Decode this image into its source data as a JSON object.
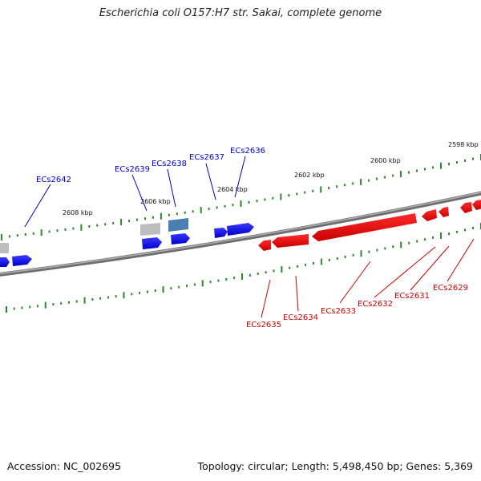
{
  "title": "Escherichia coli O157:H7 str. Sakai, complete genome",
  "footer": {
    "accession": "Accession: NC_002695",
    "topology": "Topology: circular; Length: 5,498,450 bp; Genes: 5,369"
  },
  "colors": {
    "forward_strand": "#0000e6",
    "reverse_strand": "#e60000",
    "backbone": "#808080",
    "tick_marks": "#2a8a2a",
    "grey_gene": "#bdbdbd",
    "steel_gene": "#4a7fb0"
  },
  "kbp_labels": [
    "2598 kbp",
    "2600 kbp",
    "2602 kbp",
    "2604 kbp",
    "2606 kbp",
    "2608 kbp"
  ],
  "forward_gene_labels": [
    "ECs2642",
    "ECs2639",
    "ECs2638",
    "ECs2637",
    "ECs2636"
  ],
  "reverse_gene_labels": [
    "ECs2635",
    "ECs2634",
    "ECs2633",
    "ECs2632",
    "ECs2631",
    "ECs2629"
  ]
}
